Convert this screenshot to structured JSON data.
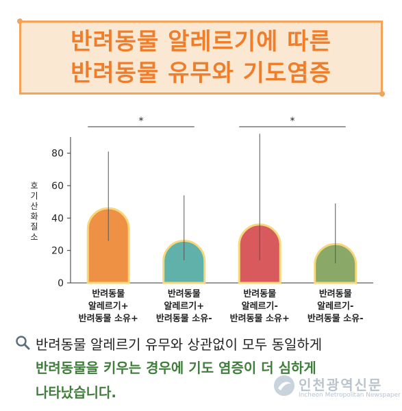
{
  "title": {
    "line1": "반려동물 알레르기에 따른",
    "line2": "반려동물 유무와 기도염증"
  },
  "chart_data": {
    "type": "bar",
    "ylabel": "호기산화질소",
    "ylim": [
      0,
      90
    ],
    "yticks": [
      0,
      20,
      40,
      60,
      80
    ],
    "categories": [
      [
        "반려동물",
        "알레르기+",
        "반려동물 소유+"
      ],
      [
        "반려동물",
        "알레르기+",
        "반려동물 소유-"
      ],
      [
        "반려동물",
        "알레르기-",
        "반려동물 소유+"
      ],
      [
        "반려동물",
        "알레르기-",
        "반려동물 소유-"
      ]
    ],
    "values": [
      46,
      26,
      36,
      24
    ],
    "error_low": [
      26,
      14,
      14,
      12
    ],
    "error_high": [
      81,
      54,
      92,
      49
    ],
    "bar_colors": [
      "#ee9145",
      "#5fb1a9",
      "#d85a5c",
      "#8aa969"
    ],
    "outline_color": "#f6d77a",
    "significance": [
      {
        "from": 0,
        "to": 1,
        "label": "*"
      },
      {
        "from": 2,
        "to": 3,
        "label": "*"
      }
    ]
  },
  "footer": {
    "line1": "반려동물 알레르기 유무와 상관없이 모두 동일하게",
    "line2": "반려동물을 키우는 경우에 기도 염증이 더 심하게",
    "line3": "나타났습니다."
  },
  "icons": {
    "magnifier": "magnifier-icon",
    "logo": "incheon-news-logo-icon"
  },
  "watermark": {
    "name": "인천광역신문",
    "sub": "Incheon Metropolitan Newspaper"
  }
}
